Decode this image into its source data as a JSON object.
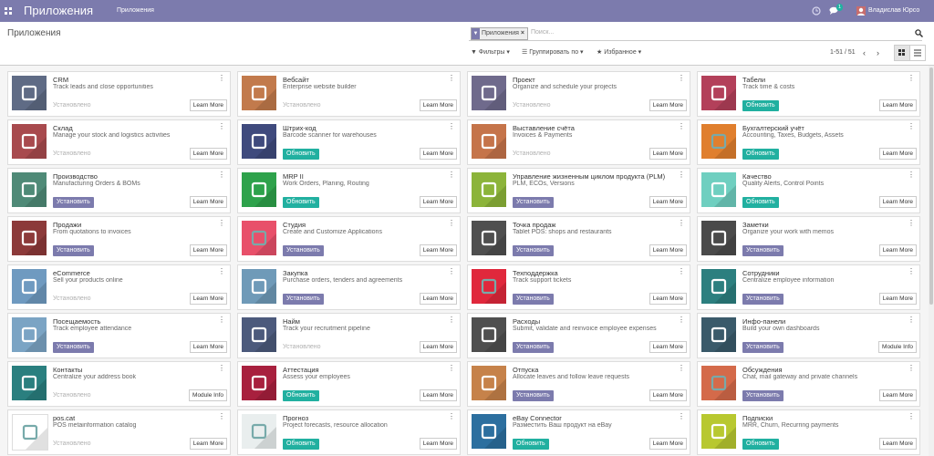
{
  "navbar": {
    "title": "Приложения",
    "menu": "Приложения",
    "badge": "1",
    "user": "Владислав Юрсо"
  },
  "control_panel": {
    "breadcrumb": "Приложения",
    "facet": "Приложения",
    "search_placeholder": "Поиск...",
    "filters": "Фильтры",
    "group_by": "Группировать по",
    "favorites": "Избранное",
    "pager": "1-51 / 51"
  },
  "apps": [
    {
      "name": "CRM",
      "summary": "Track leads and close opportunities",
      "status": "Установлено",
      "status_button": false,
      "status_color": "#b0b0b0",
      "action": "Learn More",
      "color": "#5f6b85"
    },
    {
      "name": "Вебсайт",
      "summary": "Enterprise website builder",
      "status": "Установлено",
      "status_button": false,
      "status_color": "#b0b0b0",
      "action": "Learn More",
      "color": "#c27a4c"
    },
    {
      "name": "Проект",
      "summary": "Organize and schedule your projects",
      "status": "Установлено",
      "status_button": false,
      "status_color": "#b0b0b0",
      "action": "Learn More",
      "color": "#6f6a8c"
    },
    {
      "name": "Табели",
      "summary": "Track time & costs",
      "status": "Обновить",
      "status_button": true,
      "status_color": "#21b0a0",
      "action": "Learn More",
      "color": "#b3405a"
    },
    {
      "name": "Склад",
      "summary": "Manage your stock and logistics activities",
      "status": "Установлено",
      "status_button": false,
      "status_color": "#b0b0b0",
      "action": "Learn More",
      "color": "#a84a4e"
    },
    {
      "name": "Штрих-код",
      "summary": "Barcode scanner for warehouses",
      "status": "Обновить",
      "status_button": true,
      "status_color": "#21b0a0",
      "action": "Learn More",
      "color": "#3f4a7d"
    },
    {
      "name": "Выставление счёта",
      "summary": "Invoices & Payments",
      "status": "Установлено",
      "status_button": false,
      "status_color": "#b0b0b0",
      "action": "Learn More",
      "color": "#c5744a"
    },
    {
      "name": "Бухгалтерский учёт",
      "summary": "Accounting, Taxes, Budgets, Assets",
      "status": "Обновить",
      "status_button": true,
      "status_color": "#21b0a0",
      "action": "Learn More",
      "color": "#e07f2e"
    },
    {
      "name": "Производство",
      "summary": "Manufacturing Orders & BOMs",
      "status": "Установить",
      "status_button": true,
      "status_color": "#7c7bad",
      "action": "Learn More",
      "color": "#4f8a77"
    },
    {
      "name": "MRP II",
      "summary": "Work Orders, Planing, Routing",
      "status": "Обновить",
      "status_button": true,
      "status_color": "#21b0a0",
      "action": "Learn More",
      "color": "#2ea24b"
    },
    {
      "name": "Управление жизненным циклом продукта (PLM)",
      "summary": "PLM, ECOs, Versions",
      "status": "Установить",
      "status_button": true,
      "status_color": "#7c7bad",
      "action": "Learn More",
      "color": "#8cb43a"
    },
    {
      "name": "Качество",
      "summary": "Quality Alerts, Control Points",
      "status": "Обновить",
      "status_button": true,
      "status_color": "#21b0a0",
      "action": "Learn More",
      "color": "#6fcfc0"
    },
    {
      "name": "Продажи",
      "summary": "From quotations to invoices",
      "status": "Установить",
      "status_button": true,
      "status_color": "#7c7bad",
      "action": "Learn More",
      "color": "#8c3a3a"
    },
    {
      "name": "Студия",
      "summary": "Create and Customize Applications",
      "status": "Установить",
      "status_button": true,
      "status_color": "#7c7bad",
      "action": "Learn More",
      "color": "#e8506a"
    },
    {
      "name": "Точка продаж",
      "summary": "Tablet POS: shops and restaurants",
      "status": "Установить",
      "status_button": true,
      "status_color": "#7c7bad",
      "action": "Learn More",
      "color": "#4f4f4f"
    },
    {
      "name": "Заметки",
      "summary": "Organize your work with memos",
      "status": "Установить",
      "status_button": true,
      "status_color": "#7c7bad",
      "action": "Learn More",
      "color": "#4a4a4a"
    },
    {
      "name": "eCommerce",
      "summary": "Sell your products online",
      "status": "Установлено",
      "status_button": false,
      "status_color": "#b0b0b0",
      "action": "Learn More",
      "color": "#6f9ac0"
    },
    {
      "name": "Закупка",
      "summary": "Purchase orders, tenders and agreements",
      "status": "Установить",
      "status_button": true,
      "status_color": "#7c7bad",
      "action": "Learn More",
      "color": "#6f9ab8"
    },
    {
      "name": "Техподдержка",
      "summary": "Track support tickets",
      "status": "Установить",
      "status_button": true,
      "status_color": "#7c7bad",
      "action": "Learn More",
      "color": "#e0283c"
    },
    {
      "name": "Сотрудники",
      "summary": "Centralize employee information",
      "status": "Установить",
      "status_button": true,
      "status_color": "#7c7bad",
      "action": "Learn More",
      "color": "#2c7f7f"
    },
    {
      "name": "Посещаемость",
      "summary": "Track employee attendance",
      "status": "Установить",
      "status_button": true,
      "status_color": "#7c7bad",
      "action": "Learn More",
      "color": "#7ba4c4"
    },
    {
      "name": "Найм",
      "summary": "Track your recruitment pipeline",
      "status": "Установлено",
      "status_button": false,
      "status_color": "#b0b0b0",
      "action": "Learn More",
      "color": "#4c5a7c"
    },
    {
      "name": "Расходы",
      "summary": "Submit, validate and reinvoice employee expenses",
      "status": "Установить",
      "status_button": true,
      "status_color": "#7c7bad",
      "action": "Learn More",
      "color": "#4f4f4f"
    },
    {
      "name": "Инфо-панели",
      "summary": "Build your own dashboards",
      "status": "Установить",
      "status_button": true,
      "status_color": "#7c7bad",
      "action": "Module Info",
      "color": "#3a5a6a"
    },
    {
      "name": "Контакты",
      "summary": "Centralize your address book",
      "status": "Установлено",
      "status_button": false,
      "status_color": "#b0b0b0",
      "action": "Module Info",
      "color": "#2a7f7f"
    },
    {
      "name": "Аттестация",
      "summary": "Assess your employees",
      "status": "Обновить",
      "status_button": true,
      "status_color": "#21b0a0",
      "action": "Learn More",
      "color": "#a8203e"
    },
    {
      "name": "Отпуска",
      "summary": "Allocate leaves and follow leave requests",
      "status": "Установить",
      "status_button": true,
      "status_color": "#7c7bad",
      "action": "Learn More",
      "color": "#c6824a"
    },
    {
      "name": "Обсуждения",
      "summary": "Chat, mail gateway and private channels",
      "status": "Установить",
      "status_button": true,
      "status_color": "#7c7bad",
      "action": "Learn More",
      "color": "#d46a4a"
    },
    {
      "name": "pos.cat",
      "summary": "POS metainformation catalog",
      "status": "Установлено",
      "status_button": false,
      "status_color": "#b0b0b0",
      "action": "Learn More",
      "color": "#ffffff"
    },
    {
      "name": "Прогноз",
      "summary": "Project forecasts, resource allocation",
      "status": "Обновить",
      "status_button": true,
      "status_color": "#21b0a0",
      "action": "Learn More",
      "color": "#e9eeee"
    },
    {
      "name": "eBay Connector",
      "summary": "Разместить Ваш продукт на eBay",
      "status": "Обновить",
      "status_button": true,
      "status_color": "#21b0a0",
      "action": "Learn More",
      "color": "#2c6f9f"
    },
    {
      "name": "Подписки",
      "summary": "MRR, Churn, Recurring payments",
      "status": "Обновить",
      "status_button": true,
      "status_color": "#21b0a0",
      "action": "Learn More",
      "color": "#b8c830"
    }
  ]
}
